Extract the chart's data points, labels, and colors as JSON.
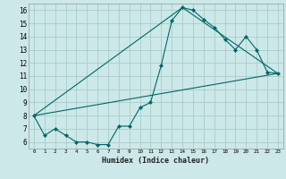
{
  "title": "",
  "xlabel": "Humidex (Indice chaleur)",
  "ylabel": "",
  "background_color": "#cce8e8",
  "grid_color": "#aacccc",
  "line_color": "#006666",
  "xlim": [
    -0.5,
    23.5
  ],
  "ylim": [
    5.5,
    16.5
  ],
  "xticks": [
    0,
    1,
    2,
    3,
    4,
    5,
    6,
    7,
    8,
    9,
    10,
    11,
    12,
    13,
    14,
    15,
    16,
    17,
    18,
    19,
    20,
    21,
    22,
    23
  ],
  "yticks": [
    6,
    7,
    8,
    9,
    10,
    11,
    12,
    13,
    14,
    15,
    16
  ],
  "line1_x": [
    0,
    1,
    2,
    3,
    4,
    5,
    6,
    7,
    8,
    9,
    10,
    11,
    12,
    13,
    14,
    15,
    16,
    17,
    18,
    19,
    20,
    21,
    22,
    23
  ],
  "line1_y": [
    8.0,
    6.5,
    7.0,
    6.5,
    6.0,
    6.0,
    5.8,
    5.8,
    7.2,
    7.2,
    8.6,
    9.0,
    11.8,
    15.2,
    16.2,
    16.0,
    15.3,
    14.7,
    13.8,
    13.0,
    14.0,
    13.0,
    11.3,
    11.2
  ],
  "line4_x": [
    0,
    23
  ],
  "line4_y": [
    8.0,
    11.2
  ],
  "line5_x": [
    0,
    14,
    23
  ],
  "line5_y": [
    8.0,
    16.2,
    11.2
  ]
}
